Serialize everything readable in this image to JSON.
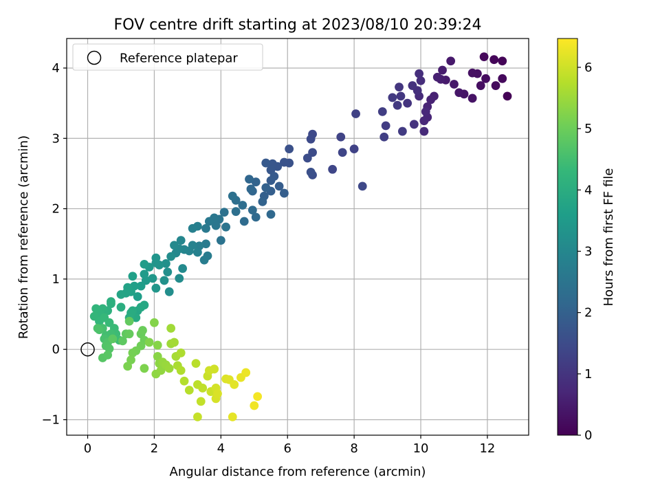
{
  "chart_data": {
    "type": "scatter",
    "title": "FOV centre drift starting at 2023/08/10 20:39:24",
    "xlabel": "Angular distance from reference (arcmin)",
    "ylabel": "Rotation from reference (arcmin)",
    "xlim": [
      -0.63,
      13.24
    ],
    "ylim": [
      -1.22,
      4.42
    ],
    "xticks": [
      0,
      2,
      4,
      6,
      8,
      10,
      12
    ],
    "yticks": [
      -1,
      0,
      1,
      2,
      3,
      4
    ],
    "xtick_labels": [
      "0",
      "2",
      "4",
      "6",
      "8",
      "10",
      "12"
    ],
    "ytick_labels": [
      "−1",
      "0",
      "1",
      "2",
      "3",
      "4"
    ],
    "grid": true,
    "legend": {
      "position": "top-left",
      "entries": [
        {
          "label": "Reference platepar",
          "marker": "open-circle"
        }
      ]
    },
    "reference_point": {
      "x": 0,
      "y": 0
    },
    "colorbar": {
      "label": "Hours from first FF file",
      "colormap": "viridis",
      "range": [
        0,
        6.47
      ],
      "ticks": [
        0,
        1,
        2,
        3,
        4,
        5,
        6
      ],
      "tick_labels": [
        "0",
        "1",
        "2",
        "3",
        "4",
        "5",
        "6"
      ]
    },
    "colors": {
      "viridis": [
        "#440154",
        "#482878",
        "#3e4989",
        "#31688e",
        "#26828e",
        "#1f9e89",
        "#35b779",
        "#6ece58",
        "#b5de2b",
        "#fde725"
      ],
      "grid": "#b0b0b0",
      "axes": "#000000"
    },
    "points": [
      [
        12.6,
        3.6,
        0.03
      ],
      [
        12.45,
        4.1,
        0.06
      ],
      [
        12.2,
        4.12,
        0.09
      ],
      [
        11.9,
        4.16,
        0.12
      ],
      [
        12.45,
        3.85,
        0.15
      ],
      [
        12.25,
        3.75,
        0.18
      ],
      [
        11.95,
        3.85,
        0.21
      ],
      [
        11.8,
        3.75,
        0.24
      ],
      [
        11.7,
        3.92,
        0.27
      ],
      [
        11.55,
        3.93,
        0.3
      ],
      [
        11.55,
        3.57,
        0.33
      ],
      [
        11.3,
        3.63,
        0.36
      ],
      [
        11.15,
        3.65,
        0.39
      ],
      [
        11.0,
        3.77,
        0.42
      ],
      [
        10.9,
        4.1,
        0.45
      ],
      [
        10.75,
        3.83,
        0.48
      ],
      [
        10.65,
        3.97,
        0.51
      ],
      [
        10.6,
        3.84,
        0.54
      ],
      [
        10.5,
        3.87,
        0.57
      ],
      [
        10.4,
        3.6,
        0.6
      ],
      [
        10.3,
        3.55,
        0.63
      ],
      [
        10.2,
        3.45,
        0.66
      ],
      [
        10.2,
        3.3,
        0.69
      ],
      [
        10.1,
        3.25,
        0.72
      ],
      [
        10.15,
        3.38,
        0.75
      ],
      [
        10.1,
        3.1,
        0.78
      ],
      [
        9.95,
        3.6,
        0.81
      ],
      [
        10.0,
        3.82,
        0.84
      ],
      [
        9.95,
        3.92,
        0.87
      ],
      [
        9.9,
        3.68,
        0.9
      ],
      [
        9.75,
        3.75,
        0.93
      ],
      [
        9.8,
        3.2,
        0.96
      ],
      [
        9.6,
        3.5,
        0.99
      ],
      [
        9.35,
        3.73,
        1.02
      ],
      [
        9.4,
        3.6,
        1.05
      ],
      [
        9.3,
        3.47,
        1.08
      ],
      [
        9.15,
        3.58,
        1.11
      ],
      [
        9.45,
        3.1,
        1.14
      ],
      [
        8.95,
        3.18,
        1.17
      ],
      [
        8.85,
        3.38,
        1.2
      ],
      [
        8.9,
        3.02,
        1.23
      ],
      [
        8.05,
        3.35,
        1.26
      ],
      [
        8.0,
        2.85,
        1.29
      ],
      [
        7.6,
        3.02,
        1.32
      ],
      [
        7.65,
        2.8,
        1.35
      ],
      [
        7.35,
        2.56,
        1.38
      ],
      [
        8.25,
        2.32,
        1.41
      ],
      [
        6.75,
        3.06,
        1.44
      ],
      [
        6.7,
        2.99,
        1.47
      ],
      [
        6.75,
        2.8,
        1.5
      ],
      [
        6.6,
        2.72,
        1.53
      ],
      [
        6.75,
        2.48,
        1.56
      ],
      [
        6.7,
        2.52,
        1.59
      ],
      [
        6.05,
        2.85,
        1.62
      ],
      [
        6.05,
        2.65,
        1.65
      ],
      [
        5.9,
        2.66,
        1.68
      ],
      [
        5.7,
        2.6,
        1.71
      ],
      [
        5.55,
        2.64,
        1.74
      ],
      [
        5.5,
        2.55,
        1.77
      ],
      [
        5.35,
        2.65,
        1.8
      ],
      [
        5.6,
        2.46,
        1.83
      ],
      [
        5.5,
        2.4,
        1.86
      ],
      [
        5.75,
        2.32,
        1.89
      ],
      [
        5.9,
        2.22,
        1.92
      ],
      [
        5.5,
        2.25,
        1.95
      ],
      [
        5.3,
        2.18,
        1.98
      ],
      [
        5.35,
        2.3,
        2.01
      ],
      [
        5.25,
        2.1,
        2.04
      ],
      [
        5.05,
        2.38,
        2.07
      ],
      [
        4.95,
        2.25,
        2.1
      ],
      [
        4.85,
        2.42,
        2.13
      ],
      [
        4.9,
        2.28,
        2.16
      ],
      [
        5.5,
        1.92,
        2.19
      ],
      [
        5.05,
        1.88,
        2.22
      ],
      [
        4.95,
        1.98,
        2.25
      ],
      [
        4.7,
        1.82,
        2.28
      ],
      [
        4.65,
        2.05,
        2.31
      ],
      [
        4.45,
        2.12,
        2.34
      ],
      [
        4.45,
        1.96,
        2.37
      ],
      [
        4.35,
        2.18,
        2.4
      ],
      [
        4.1,
        1.95,
        2.43
      ],
      [
        4.0,
        1.55,
        2.46
      ],
      [
        4.15,
        1.74,
        2.49
      ],
      [
        3.95,
        1.85,
        2.52
      ],
      [
        3.85,
        1.76,
        2.55
      ],
      [
        3.8,
        1.87,
        2.58
      ],
      [
        3.65,
        1.82,
        2.61
      ],
      [
        3.55,
        1.72,
        2.64
      ],
      [
        3.55,
        1.5,
        2.67
      ],
      [
        3.6,
        1.33,
        2.7
      ],
      [
        3.5,
        1.27,
        2.73
      ],
      [
        3.35,
        1.47,
        2.76
      ],
      [
        3.3,
        1.75,
        2.79
      ],
      [
        3.15,
        1.72,
        2.82
      ],
      [
        3.3,
        1.38,
        2.85
      ],
      [
        3.15,
        1.48,
        2.88
      ],
      [
        3.05,
        1.4,
        2.91
      ],
      [
        2.9,
        1.42,
        2.94
      ],
      [
        2.8,
        1.55,
        2.97
      ],
      [
        2.75,
        1.43,
        3.0
      ],
      [
        2.65,
        1.37,
        3.03
      ],
      [
        2.6,
        1.48,
        3.06
      ],
      [
        2.85,
        1.15,
        3.09
      ],
      [
        2.75,
        1.01,
        3.12
      ],
      [
        2.5,
        1.32,
        3.15
      ],
      [
        2.45,
        0.82,
        3.18
      ],
      [
        2.4,
        1.1,
        3.21
      ],
      [
        2.35,
        1.22,
        3.24
      ],
      [
        2.3,
        0.98,
        3.27
      ],
      [
        2.15,
        1.2,
        3.3
      ],
      [
        2.05,
        1.23,
        3.33
      ],
      [
        2.05,
        1.3,
        3.36
      ],
      [
        2.05,
        0.87,
        3.39
      ],
      [
        1.95,
        1.01,
        3.42
      ],
      [
        1.85,
        1.17,
        3.45
      ],
      [
        1.75,
        0.98,
        3.48
      ],
      [
        1.7,
        1.07,
        3.51
      ],
      [
        1.7,
        1.21,
        3.54
      ],
      [
        1.6,
        0.9,
        3.57
      ],
      [
        1.5,
        0.75,
        3.6
      ],
      [
        1.4,
        0.9,
        3.63
      ],
      [
        1.35,
        1.04,
        3.66
      ],
      [
        1.3,
        0.82,
        3.69
      ],
      [
        1.2,
        0.88,
        3.72
      ],
      [
        1.15,
        0.8,
        3.75
      ],
      [
        1.0,
        0.78,
        3.78
      ],
      [
        1.5,
        0.55,
        3.81
      ],
      [
        1.7,
        0.63,
        3.84
      ],
      [
        1.6,
        0.6,
        3.87
      ],
      [
        1.45,
        0.45,
        3.9
      ],
      [
        1.35,
        0.55,
        3.93
      ],
      [
        1.3,
        0.52,
        3.96
      ],
      [
        1.25,
        0.45,
        3.99
      ],
      [
        1.0,
        0.6,
        4.02
      ],
      [
        0.7,
        0.68,
        4.05
      ],
      [
        0.7,
        0.65,
        4.08
      ],
      [
        0.6,
        0.55,
        4.11
      ],
      [
        0.5,
        0.52,
        4.14
      ],
      [
        0.45,
        0.58,
        4.17
      ],
      [
        0.35,
        0.52,
        4.2
      ],
      [
        0.25,
        0.58,
        4.23
      ],
      [
        0.2,
        0.47,
        4.26
      ],
      [
        0.35,
        0.4,
        4.29
      ],
      [
        0.5,
        0.45,
        4.32
      ],
      [
        0.65,
        0.38,
        4.35
      ],
      [
        0.8,
        0.3,
        4.38
      ],
      [
        0.85,
        0.22,
        4.41
      ],
      [
        0.95,
        0.13,
        4.44
      ],
      [
        0.7,
        0.22,
        4.47
      ],
      [
        0.55,
        0.2,
        4.5
      ],
      [
        0.45,
        0.3,
        4.53
      ],
      [
        0.5,
        0.15,
        4.56
      ],
      [
        0.35,
        0.28,
        4.59
      ],
      [
        0.3,
        0.3,
        4.62
      ],
      [
        0.6,
        0.1,
        4.65
      ],
      [
        0.55,
        0.05,
        4.68
      ],
      [
        0.65,
        0.01,
        4.71
      ],
      [
        0.45,
        -0.12,
        4.74
      ],
      [
        0.6,
        -0.08,
        4.77
      ],
      [
        0.75,
        0.15,
        4.8
      ],
      [
        1.05,
        0.12,
        4.83
      ],
      [
        1.15,
        0.22,
        4.86
      ],
      [
        1.25,
        0.4,
        4.89
      ],
      [
        1.25,
        0.22,
        4.92
      ],
      [
        1.6,
        0.22,
        4.95
      ],
      [
        1.65,
        0.27,
        4.98
      ],
      [
        1.7,
        0.13,
        5.01
      ],
      [
        1.6,
        0.05,
        5.04
      ],
      [
        1.45,
        -0.02,
        5.07
      ],
      [
        1.35,
        -0.05,
        5.1
      ],
      [
        1.3,
        -0.15,
        5.13
      ],
      [
        1.2,
        -0.24,
        5.16
      ],
      [
        1.7,
        -0.27,
        5.19
      ],
      [
        1.85,
        0.1,
        5.22
      ],
      [
        2.0,
        0.38,
        5.25
      ],
      [
        2.1,
        0.06,
        5.28
      ],
      [
        2.1,
        -0.1,
        5.31
      ],
      [
        2.15,
        -0.2,
        5.34
      ],
      [
        2.05,
        -0.35,
        5.37
      ],
      [
        2.2,
        -0.3,
        5.4
      ],
      [
        2.25,
        -0.18,
        5.43
      ],
      [
        2.35,
        -0.22,
        5.46
      ],
      [
        2.45,
        -0.27,
        5.49
      ],
      [
        2.5,
        0.08,
        5.52
      ],
      [
        2.5,
        0.3,
        5.55
      ],
      [
        2.6,
        0.1,
        5.58
      ],
      [
        2.65,
        -0.1,
        5.61
      ],
      [
        2.7,
        -0.23,
        5.64
      ],
      [
        2.8,
        -0.05,
        5.67
      ],
      [
        2.8,
        -0.3,
        5.7
      ],
      [
        2.9,
        -0.45,
        5.73
      ],
      [
        3.05,
        -0.58,
        5.76
      ],
      [
        3.25,
        -0.2,
        5.79
      ],
      [
        3.3,
        -0.5,
        5.82
      ],
      [
        3.45,
        -0.55,
        5.85
      ],
      [
        3.4,
        -0.74,
        5.88
      ],
      [
        3.3,
        -0.96,
        5.91
      ],
      [
        3.6,
        -0.38,
        5.94
      ],
      [
        3.7,
        -0.6,
        5.97
      ],
      [
        3.65,
        -0.3,
        6.0
      ],
      [
        3.8,
        -0.28,
        6.02
      ],
      [
        3.85,
        -0.55,
        6.05
      ],
      [
        3.85,
        -0.7,
        6.08
      ],
      [
        3.9,
        -0.63,
        6.11
      ],
      [
        4.15,
        -0.42,
        6.14
      ],
      [
        4.25,
        -0.43,
        6.17
      ],
      [
        4.4,
        -0.5,
        6.2
      ],
      [
        4.35,
        -0.96,
        6.23
      ],
      [
        4.6,
        -0.4,
        6.26
      ],
      [
        4.75,
        -0.33,
        6.3
      ],
      [
        5.0,
        -0.8,
        6.34
      ],
      [
        5.1,
        -0.67,
        6.38
      ]
    ]
  }
}
